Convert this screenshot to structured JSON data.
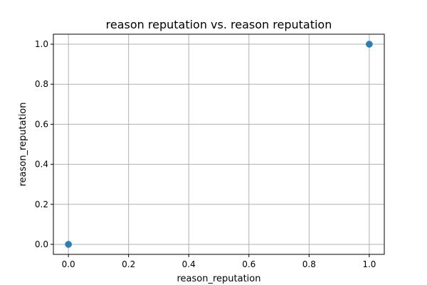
{
  "chart_data": {
    "type": "scatter",
    "title": "reason reputation vs. reason reputation",
    "xlabel": "reason_reputation",
    "ylabel": "reason_reputation",
    "xlim": [
      -0.05,
      1.05
    ],
    "ylim": [
      -0.05,
      1.05
    ],
    "xticks": [
      "0.0",
      "0.2",
      "0.4",
      "0.6",
      "0.8",
      "1.0"
    ],
    "yticks": [
      "0.0",
      "0.2",
      "0.4",
      "0.6",
      "0.8",
      "1.0"
    ],
    "grid": true,
    "legend": "none",
    "marker_color": "#1f77b4",
    "points": [
      {
        "x": 0,
        "y": 0
      },
      {
        "x": 0,
        "y": 0
      },
      {
        "x": 1,
        "y": 1
      },
      {
        "x": 1,
        "y": 1
      }
    ]
  }
}
